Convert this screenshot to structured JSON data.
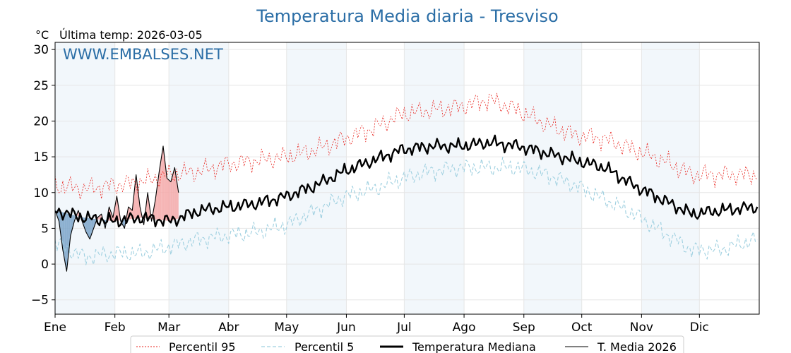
{
  "chart_data": {
    "type": "line",
    "title": "Temperatura Media diaria - Tresviso",
    "unit": "°C",
    "subtitle": "Última temp: 2026-03-05",
    "watermark": "WWW.EMBALSES.NET",
    "ylim": [
      -7,
      31
    ],
    "yticks": [
      -5,
      0,
      5,
      10,
      15,
      20,
      25,
      30
    ],
    "grid": true,
    "legend_position": "bottom-center",
    "months": [
      "Ene",
      "Feb",
      "Mar",
      "Abr",
      "May",
      "Jun",
      "Jul",
      "Ago",
      "Sep",
      "Oct",
      "Nov",
      "Dic"
    ],
    "month_start_day": [
      0,
      31,
      59,
      90,
      120,
      151,
      181,
      212,
      243,
      273,
      304,
      334
    ],
    "series": [
      {
        "name": "Percentil 95",
        "color": "#e8211b",
        "style": "dotted",
        "x": [
          0,
          15,
          30,
          45,
          60,
          75,
          90,
          105,
          120,
          135,
          150,
          165,
          180,
          195,
          210,
          225,
          240,
          255,
          270,
          285,
          300,
          315,
          330,
          345,
          364
        ],
        "y": [
          11,
          10.5,
          11,
          11.5,
          12.5,
          13,
          14,
          14.5,
          15,
          16,
          17.5,
          19,
          21,
          21.5,
          22,
          23,
          21.5,
          19.5,
          18,
          17.5,
          16,
          14.5,
          12.5,
          12.5,
          12.5
        ]
      },
      {
        "name": "Percentil 5",
        "color": "#9fd0e0",
        "style": "dashed",
        "x": [
          0,
          15,
          30,
          45,
          60,
          75,
          90,
          105,
          120,
          135,
          150,
          165,
          180,
          195,
          210,
          225,
          240,
          255,
          270,
          285,
          300,
          315,
          330,
          345,
          364
        ],
        "y": [
          3,
          1,
          1.5,
          1.5,
          2.5,
          3.5,
          4,
          4.5,
          5.5,
          7.5,
          9.5,
          10.5,
          12,
          13,
          13.5,
          13.5,
          13.5,
          12.5,
          11,
          9,
          7,
          4.5,
          2,
          2,
          3.5
        ]
      },
      {
        "name": "Temperatura Mediana",
        "color": "#000000",
        "style": "solid-thick",
        "x": [
          0,
          15,
          30,
          45,
          60,
          75,
          90,
          105,
          120,
          135,
          150,
          165,
          180,
          195,
          210,
          225,
          240,
          255,
          270,
          285,
          300,
          315,
          330,
          345,
          364
        ],
        "y": [
          7.5,
          6.5,
          6,
          6.5,
          6,
          7.5,
          8,
          8.5,
          9.5,
          11,
          13,
          14.5,
          16,
          16.5,
          16.5,
          17,
          16.5,
          15.5,
          14.5,
          13.5,
          11,
          9,
          7,
          7.5,
          8
        ]
      },
      {
        "name": "T. Media 2026",
        "color": "#000000",
        "style": "solid-thin",
        "x": [
          0,
          2,
          4,
          6,
          8,
          10,
          12,
          14,
          16,
          18,
          20,
          22,
          24,
          26,
          28,
          30,
          32,
          34,
          36,
          38,
          40,
          42,
          44,
          46,
          48,
          50,
          52,
          54,
          56,
          58,
          60,
          62,
          64
        ],
        "y": [
          7.5,
          6,
          2,
          -1,
          4,
          6,
          7.5,
          6,
          4.5,
          3.5,
          5,
          6.5,
          7,
          5,
          8,
          6.5,
          9.5,
          6,
          5,
          8,
          7.5,
          12.5,
          8,
          5.5,
          10,
          6,
          9,
          13,
          16.5,
          12,
          11.5,
          13.5,
          10
        ]
      }
    ]
  }
}
